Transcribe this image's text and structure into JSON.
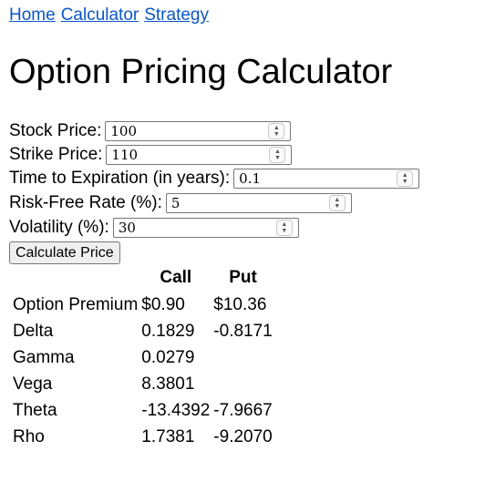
{
  "nav": {
    "links": [
      "Home",
      "Calculator",
      "Strategy"
    ]
  },
  "title": "Option Pricing Calculator",
  "form": {
    "stock_price": {
      "label": "Stock Price:",
      "value": "100"
    },
    "strike_price": {
      "label": "Strike Price:",
      "value": "110"
    },
    "time_to_expiration": {
      "label": "Time to Expiration (in years):",
      "value": "0.1"
    },
    "risk_free_rate": {
      "label": "Risk-Free Rate (%):",
      "value": "5"
    },
    "volatility": {
      "label": "Volatility (%):",
      "value": "30"
    },
    "calculate_label": "Calculate Price"
  },
  "results": {
    "headers": [
      "",
      "Call",
      "Put"
    ],
    "rows": [
      {
        "label": "Option Premium",
        "call": "$0.90",
        "put": "$10.36"
      },
      {
        "label": "Delta",
        "call": "0.1829",
        "put": "-0.8171"
      },
      {
        "label": "Gamma",
        "call": "0.0279",
        "put": ""
      },
      {
        "label": "Vega",
        "call": "8.3801",
        "put": ""
      },
      {
        "label": "Theta",
        "call": "-13.4392",
        "put": "-7.9667"
      },
      {
        "label": "Rho",
        "call": "1.7381",
        "put": "-9.2070"
      }
    ]
  }
}
